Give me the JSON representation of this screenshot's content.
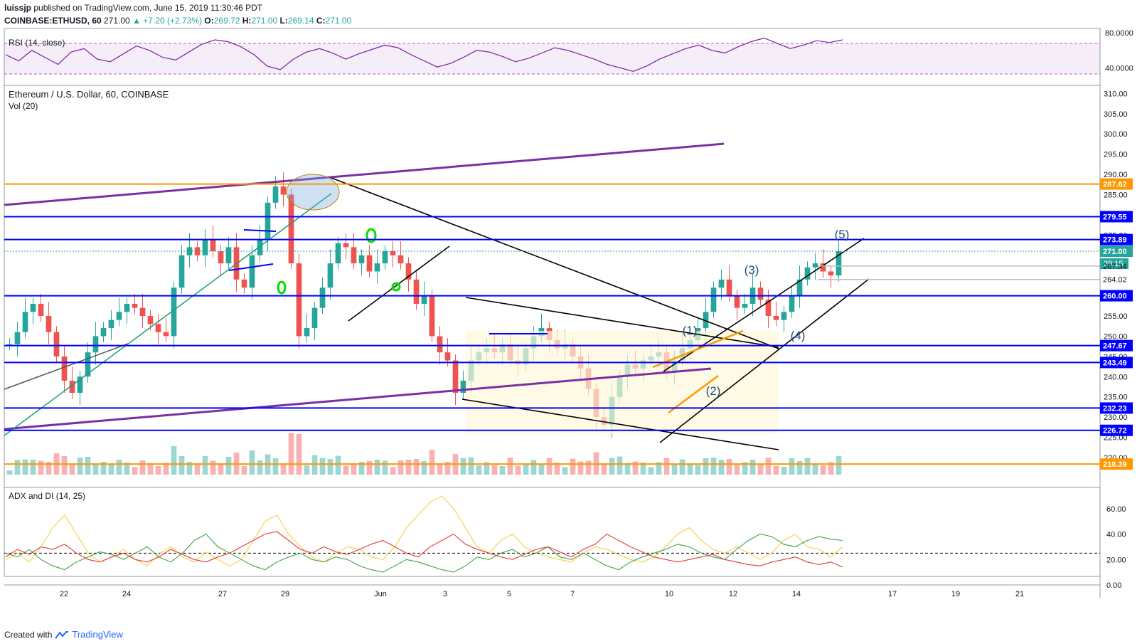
{
  "header": {
    "author": "luissjp",
    "published": "published on TradingView.com, June 15, 2019 11:30:46 PDT",
    "symbol": "COINBASE:ETHUSD, 60",
    "last": "271.00",
    "change": "+7.20 (+2.73%)",
    "o_label": "O:",
    "o": "269.72",
    "h_label": "H:",
    "h": "271.00",
    "l_label": "L:",
    "l": "269.14",
    "c_label": "C:",
    "c": "271.00"
  },
  "panes": {
    "rsi_title": "RSI (14, close)",
    "main_title": "Ethereum / U.S. Dollar, 60, COINBASE",
    "vol_title": "Vol (20)",
    "adx_title": "ADX and DI (14, 25)"
  },
  "footer": {
    "created_with": "Created with",
    "brand": "TradingView"
  },
  "colors": {
    "up": "#26a69a",
    "down": "#ef5350",
    "level_blue": "#0000ff",
    "level_orange": "#ff9800",
    "trend_purple": "#7b2fa5",
    "rsi_line": "#7b1fa2"
  },
  "chart_data": [
    {
      "type": "line",
      "title": "RSI (14, close)",
      "ylim": [
        20,
        85
      ],
      "y_ticks": [
        "80.0000",
        "40.0000"
      ],
      "bands": [
        70,
        30
      ],
      "series": [
        {
          "name": "RSI",
          "values": [
            55,
            48,
            60,
            52,
            44,
            58,
            62,
            50,
            47,
            56,
            65,
            60,
            52,
            49,
            58,
            67,
            72,
            70,
            64,
            55,
            42,
            38,
            50,
            58,
            62,
            57,
            50,
            56,
            61,
            66,
            63,
            55,
            48,
            41,
            45,
            52,
            60,
            58,
            53,
            47,
            51,
            57,
            63,
            60,
            55,
            50,
            44,
            40,
            36,
            42,
            50,
            56,
            62,
            66,
            60,
            57,
            64,
            70,
            74,
            68,
            62,
            66,
            71,
            69,
            72
          ]
        }
      ]
    },
    {
      "type": "candlestick",
      "title": "Ethereum / U.S. Dollar, 60, COINBASE",
      "ylim": [
        217,
        312
      ],
      "y_ticks": [
        "310.00",
        "305.00",
        "300.00",
        "295.00",
        "290.00",
        "285.00",
        "275.00",
        "255.00",
        "250.00",
        "245.00",
        "240.00",
        "235.00",
        "230.00",
        "225.00",
        "220.00"
      ],
      "x_ticks": [
        "22",
        "24",
        "27",
        "29",
        "Jun",
        "3",
        "5",
        "7",
        "10",
        "12",
        "14",
        "17",
        "19",
        "21"
      ],
      "close": [
        248,
        251,
        256,
        258,
        255,
        251,
        245,
        239,
        236,
        240,
        246,
        250,
        252,
        254,
        256,
        258,
        257,
        255,
        253,
        251,
        250,
        262,
        270,
        272,
        270,
        274,
        271,
        268,
        272,
        264,
        262,
        270,
        274,
        283,
        287,
        285,
        268,
        250,
        252,
        257,
        262,
        268,
        273,
        272,
        268,
        270,
        266,
        268,
        271,
        270,
        268,
        264,
        258,
        260,
        250,
        246,
        244,
        236,
        239,
        244,
        246,
        247,
        246,
        248,
        244,
        243,
        247,
        250,
        252,
        249,
        247,
        248,
        245,
        242,
        237,
        230,
        228,
        235,
        240,
        243,
        242,
        244,
        245,
        246,
        241,
        244,
        247,
        249,
        252,
        256,
        262,
        264,
        260,
        257,
        258,
        262,
        259,
        255,
        254,
        256,
        260,
        264,
        267,
        268,
        266,
        265,
        271
      ],
      "price_labels": [
        "287.62",
        "279.55",
        "273.89",
        "271.00",
        "29:15",
        "267.34",
        "264.02",
        "260.00",
        "247.67",
        "243.49",
        "232.23",
        "226.72",
        "218.39"
      ],
      "levels": [
        {
          "value": 287.62,
          "label": "287.62",
          "color": "#ff9800"
        },
        {
          "value": 279.55,
          "label": "279.55",
          "color": "#0000ff"
        },
        {
          "value": 273.89,
          "label": "273.89",
          "color": "#0000ff"
        },
        {
          "value": 260.0,
          "label": "260.00",
          "color": "#0000ff"
        },
        {
          "value": 247.67,
          "label": "247.67",
          "color": "#0000ff"
        },
        {
          "value": 243.49,
          "label": "243.49",
          "color": "#0000ff"
        },
        {
          "value": 232.23,
          "label": "232.23",
          "color": "#0000ff"
        },
        {
          "value": 226.72,
          "label": "226.72",
          "color": "#0000ff"
        },
        {
          "value": 218.39,
          "label": "218.39",
          "color": "#ff9800"
        }
      ],
      "wave_labels": [
        "(1)",
        "(2)",
        "(3)",
        "(4)",
        "(5)"
      ]
    },
    {
      "type": "line",
      "title": "ADX and DI (14, 25)",
      "ylim": [
        0,
        75
      ],
      "y_ticks": [
        "60.00",
        "40.00",
        "20.00",
        "0.00"
      ],
      "hline": 25,
      "series": [
        {
          "name": "ADX",
          "values": [
            20,
            25,
            18,
            30,
            45,
            55,
            40,
            25,
            18,
            22,
            28,
            20,
            15,
            24,
            30,
            22,
            18,
            26,
            20,
            15,
            20,
            35,
            50,
            55,
            40,
            30,
            22,
            18,
            25,
            30,
            28,
            22,
            20,
            30,
            45,
            55,
            65,
            70,
            60,
            45,
            30,
            25,
            35,
            40,
            30,
            25,
            22,
            20,
            18,
            25,
            30,
            28,
            24,
            20,
            18,
            22,
            30,
            40,
            45,
            35,
            28,
            25,
            30,
            25,
            20,
            25,
            35,
            40,
            30,
            28,
            22,
            30
          ]
        },
        {
          "name": "+DI",
          "values": [
            25,
            22,
            28,
            20,
            15,
            12,
            18,
            22,
            26,
            24,
            20,
            25,
            30,
            22,
            18,
            25,
            35,
            40,
            30,
            25,
            20,
            15,
            12,
            18,
            22,
            25,
            20,
            18,
            22,
            20,
            15,
            12,
            10,
            15,
            20,
            18,
            15,
            12,
            10,
            15,
            22,
            20,
            25,
            28,
            22,
            25,
            30,
            22,
            20,
            25,
            20,
            15,
            12,
            18,
            22,
            25,
            28,
            32,
            30,
            25,
            22,
            20,
            28,
            35,
            40,
            38,
            32,
            30,
            35,
            38,
            36,
            35
          ]
        },
        {
          "name": "-DI",
          "values": [
            22,
            28,
            24,
            30,
            28,
            32,
            25,
            20,
            18,
            22,
            25,
            20,
            18,
            22,
            28,
            24,
            20,
            18,
            22,
            25,
            30,
            35,
            40,
            42,
            35,
            28,
            25,
            30,
            26,
            24,
            28,
            32,
            35,
            30,
            25,
            22,
            30,
            35,
            40,
            32,
            28,
            25,
            22,
            20,
            24,
            28,
            30,
            26,
            22,
            28,
            32,
            40,
            35,
            30,
            26,
            22,
            20,
            18,
            20,
            22,
            24,
            20,
            18,
            16,
            15,
            18,
            20,
            22,
            18,
            16,
            18,
            14
          ]
        }
      ]
    }
  ]
}
